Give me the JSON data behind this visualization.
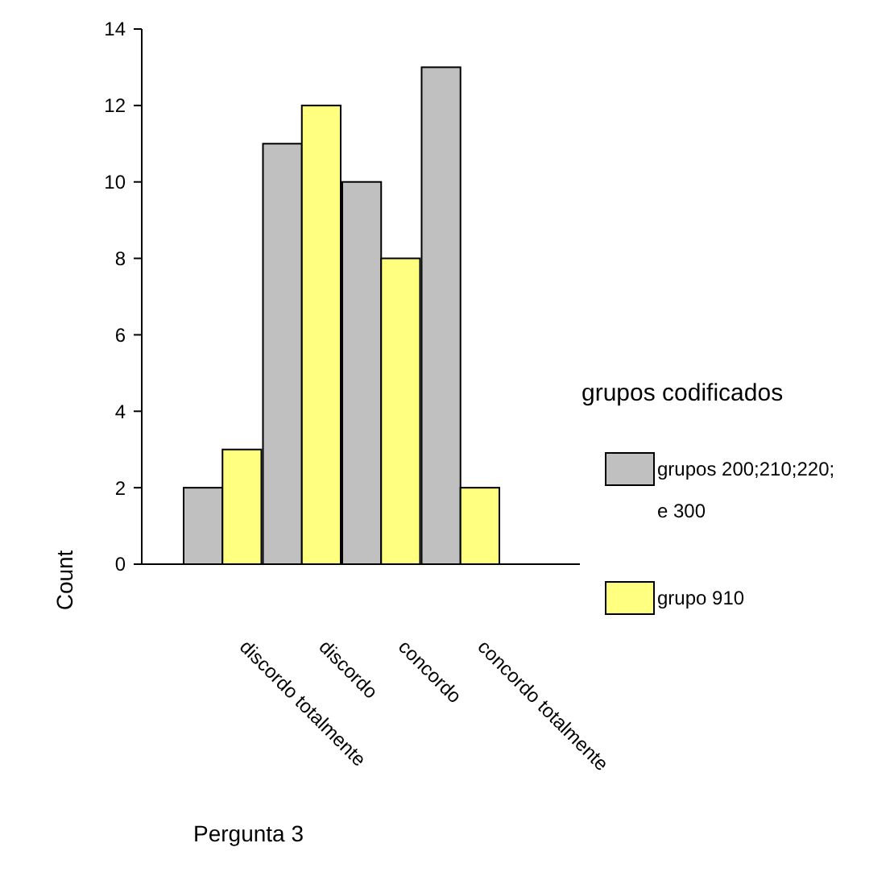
{
  "chart_data": {
    "type": "bar",
    "xlabel": "Pergunta 3",
    "ylabel": "Count",
    "legend_title": "grupos codificados",
    "categories": [
      "discordo totalmente",
      "discordo",
      "concordo",
      "concordo totalmente"
    ],
    "series": [
      {
        "name": "grupos 200;210;220; e 300",
        "color": "#c0c0c0",
        "values": [
          2,
          11,
          10,
          13
        ]
      },
      {
        "name": "grupo 910",
        "color": "#ffff80",
        "values": [
          3,
          12,
          8,
          2
        ]
      }
    ],
    "ylim": [
      0,
      14
    ],
    "yticks": [
      0,
      2,
      4,
      6,
      8,
      10,
      12,
      14
    ],
    "legend": "right",
    "grid": false
  }
}
